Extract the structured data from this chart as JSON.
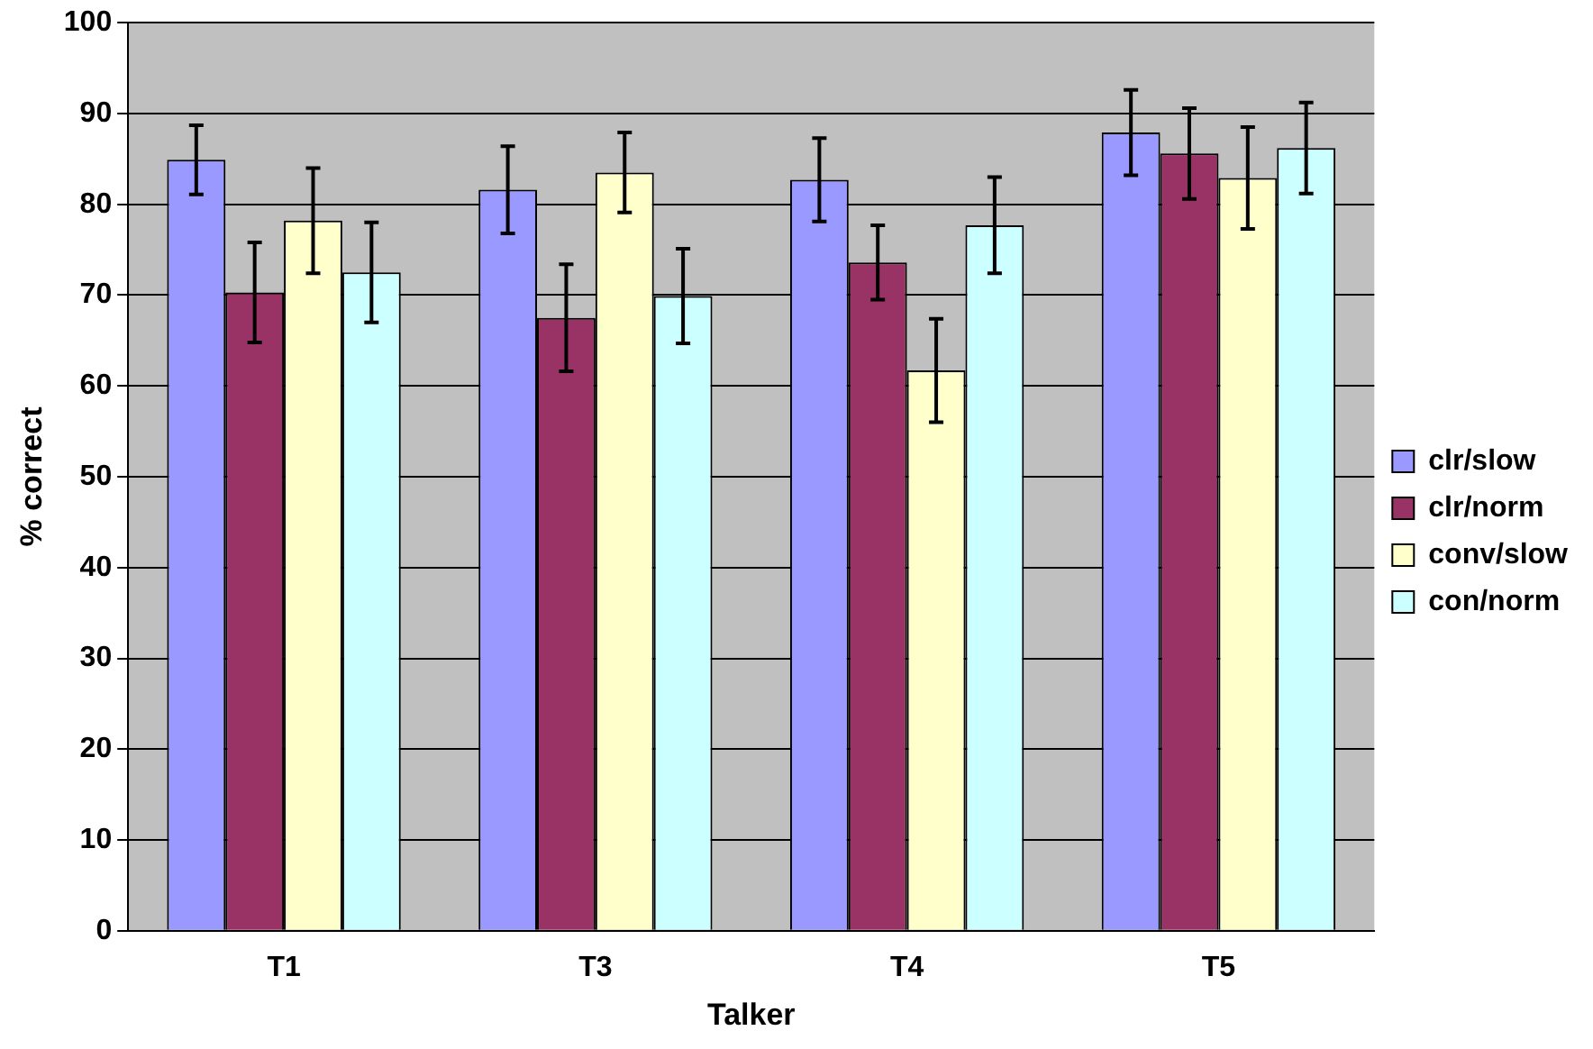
{
  "chart_data": {
    "type": "bar",
    "xlabel": "Talker",
    "ylabel": "% correct",
    "categories": [
      "T1",
      "T3",
      "T4",
      "T5"
    ],
    "series": [
      {
        "name": "clr/slow",
        "color": "#9999ff",
        "values": [
          84.9,
          81.6,
          82.7,
          87.9
        ],
        "errors": [
          3.8,
          4.8,
          4.6,
          4.7
        ]
      },
      {
        "name": "clr/norm",
        "color": "#993366",
        "values": [
          70.3,
          67.5,
          73.6,
          85.6
        ],
        "errors": [
          5.5,
          5.9,
          4.1,
          5.0
        ]
      },
      {
        "name": "conv/slow",
        "color": "#ffffcc",
        "values": [
          78.2,
          83.5,
          61.7,
          82.9
        ],
        "errors": [
          5.8,
          4.4,
          5.7,
          5.6
        ]
      },
      {
        "name": "con/norm",
        "color": "#ccffff",
        "values": [
          72.5,
          69.9,
          77.7,
          86.2
        ],
        "errors": [
          5.5,
          5.2,
          5.3,
          5.0
        ]
      }
    ],
    "ylim": [
      0,
      100
    ],
    "yticks": [
      0,
      10,
      20,
      30,
      40,
      50,
      60,
      70,
      80,
      90,
      100
    ],
    "grid": "y",
    "legend": "right"
  }
}
